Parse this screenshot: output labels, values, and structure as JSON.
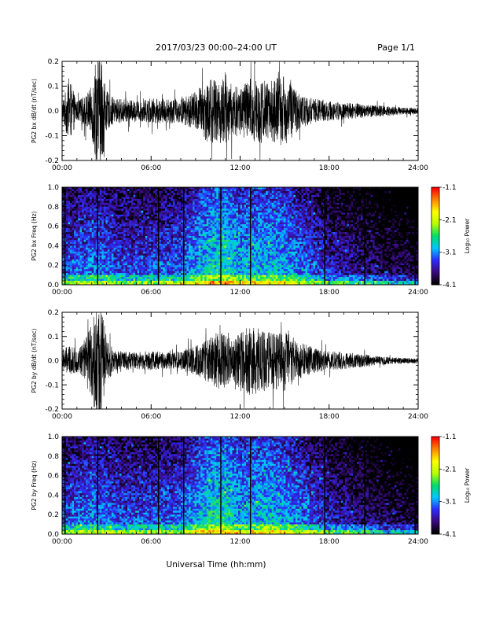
{
  "header": {
    "title": "2017/03/23  00:00–24:00 UT",
    "page_label": "Page 1/1"
  },
  "x_axis_label": "Universal Time (hh:mm)",
  "colorbar": {
    "label": "Log₁₀ Power",
    "ticks": [
      "-1.1",
      "-2.1",
      "-3.1",
      "-4.1"
    ],
    "range": [
      -4.1,
      -1.1
    ],
    "colors": [
      "#000000",
      "#3a0a80",
      "#2c2cff",
      "#00c8ff",
      "#00dd66",
      "#b8ff00",
      "#ffff00",
      "#ff8800",
      "#ff0000"
    ]
  },
  "chart_data": [
    {
      "type": "line",
      "panel": "PG2 bx dB/dt",
      "ylabel": "PG2 bx dB/dt (nT/sec)",
      "xlim": [
        0,
        24
      ],
      "ylim": [
        -0.2,
        0.2
      ],
      "x_ticks": [
        "00:00",
        "06:00",
        "12:00",
        "18:00",
        "24:00"
      ],
      "y_ticks": [
        "0.2",
        "0.1",
        "0.0",
        "-0.1",
        "-0.2"
      ],
      "note_values": "amplitude envelope (nT/sec) vs hour",
      "envelope_x": [
        0,
        0.5,
        1,
        1.5,
        2,
        2.3,
        2.6,
        3,
        3.5,
        4,
        5,
        6,
        7,
        8,
        9,
        10,
        10.5,
        11,
        11.5,
        12,
        12.5,
        13,
        13.5,
        14,
        14.5,
        15,
        15.5,
        16,
        17,
        18,
        19,
        20,
        21,
        22,
        23,
        24
      ],
      "envelope_y": [
        0.04,
        0.13,
        0.04,
        0.06,
        0.1,
        0.25,
        0.25,
        0.08,
        0.05,
        0.05,
        0.04,
        0.05,
        0.05,
        0.05,
        0.08,
        0.14,
        0.12,
        0.16,
        0.1,
        0.1,
        0.13,
        0.14,
        0.13,
        0.12,
        0.14,
        0.14,
        0.11,
        0.07,
        0.05,
        0.04,
        0.035,
        0.03,
        0.025,
        0.02,
        0.015,
        0.012
      ]
    },
    {
      "type": "heatmap",
      "panel": "PG2 bx Freq",
      "ylabel": "PG2 bx Freq (Hz)",
      "xlim": [
        0,
        24
      ],
      "ylim": [
        0.0,
        1.0
      ],
      "x_ticks": [
        "00:00",
        "06:00",
        "12:00",
        "18:00",
        "24:00"
      ],
      "y_ticks": [
        "1.0",
        "0.8",
        "0.6",
        "0.4",
        "0.2",
        "0.0"
      ],
      "data_gaps_hours": [
        0.2,
        2.4,
        6.5,
        8.2,
        10.7,
        12.7,
        17.7,
        20.4,
        23.8
      ],
      "activity_x": [
        0,
        2,
        4,
        6,
        8,
        10,
        11,
        12,
        14,
        15,
        16,
        18,
        20,
        22,
        24
      ],
      "activity_level": [
        0.45,
        0.55,
        0.45,
        0.45,
        0.5,
        0.75,
        0.8,
        0.65,
        0.7,
        0.65,
        0.55,
        0.35,
        0.25,
        0.15,
        0.1
      ]
    },
    {
      "type": "line",
      "panel": "PG2 by dB/dt",
      "ylabel": "PG2 by dB/dt (nT/sec)",
      "xlim": [
        0,
        24
      ],
      "ylim": [
        -0.2,
        0.2
      ],
      "x_ticks": [
        "00:00",
        "06:00",
        "12:00",
        "18:00",
        "24:00"
      ],
      "y_ticks": [
        "0.2",
        "0.1",
        "0.0",
        "-0.1",
        "-0.2"
      ],
      "note_values": "amplitude envelope (nT/sec) vs hour",
      "envelope_x": [
        0,
        0.5,
        1,
        1.5,
        2,
        2.3,
        2.6,
        3,
        3.5,
        4,
        5,
        6,
        7,
        8,
        9,
        10,
        10.5,
        11,
        11.5,
        12,
        12.5,
        13,
        13.5,
        14,
        14.5,
        15,
        15.5,
        16,
        17,
        18,
        19,
        20,
        21,
        22,
        23,
        24
      ],
      "envelope_y": [
        0.05,
        0.06,
        0.05,
        0.08,
        0.15,
        0.25,
        0.25,
        0.1,
        0.04,
        0.04,
        0.035,
        0.04,
        0.035,
        0.04,
        0.06,
        0.1,
        0.12,
        0.11,
        0.08,
        0.12,
        0.15,
        0.14,
        0.13,
        0.12,
        0.12,
        0.13,
        0.1,
        0.08,
        0.05,
        0.04,
        0.035,
        0.03,
        0.02,
        0.015,
        0.012,
        0.01
      ]
    },
    {
      "type": "heatmap",
      "panel": "PG2 by Freq",
      "ylabel": "PG2 by Freq (Hz)",
      "xlim": [
        0,
        24
      ],
      "ylim": [
        0.0,
        1.0
      ],
      "x_ticks": [
        "00:00",
        "06:00",
        "12:00",
        "18:00",
        "24:00"
      ],
      "y_ticks": [
        "1.0",
        "0.8",
        "0.6",
        "0.4",
        "0.2",
        "0.0"
      ],
      "data_gaps_hours": [
        0.2,
        2.4,
        6.5,
        8.2,
        10.7,
        12.7,
        17.7,
        20.4,
        23.8
      ],
      "activity_x": [
        0,
        2,
        4,
        6,
        8,
        10,
        11,
        12,
        14,
        15,
        16,
        18,
        20,
        22,
        24
      ],
      "activity_level": [
        0.45,
        0.55,
        0.45,
        0.45,
        0.5,
        0.75,
        0.8,
        0.65,
        0.7,
        0.65,
        0.55,
        0.35,
        0.25,
        0.15,
        0.1
      ]
    }
  ]
}
